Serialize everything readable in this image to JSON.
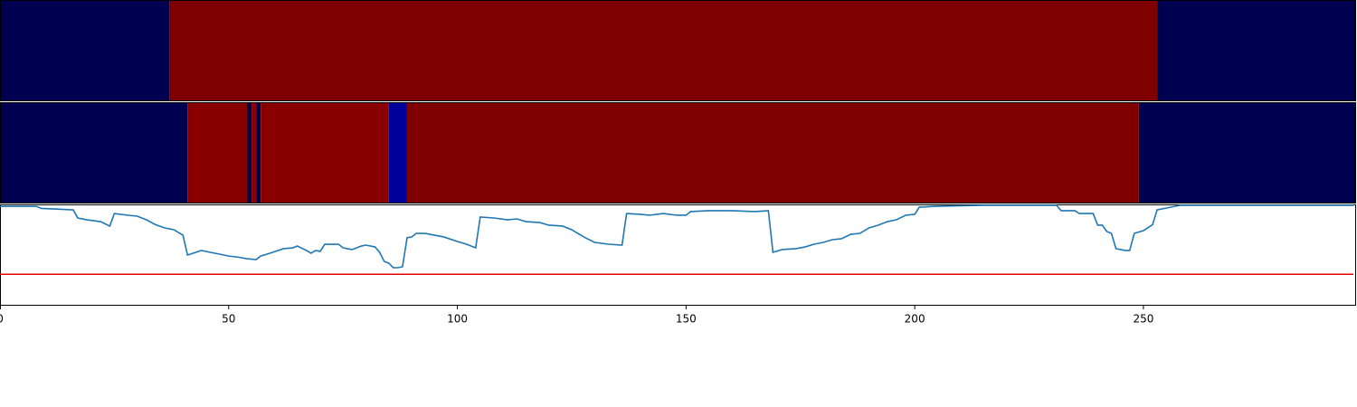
{
  "chart_data": {
    "type": "line",
    "xlim": [
      0,
      296.5
    ],
    "xticks": [
      0,
      50,
      100,
      150,
      200,
      250
    ],
    "heatmaps": [
      {
        "segments": [
          {
            "x0": 0,
            "x1": 37,
            "color": "#000050"
          },
          {
            "x0": 37,
            "x1": 253,
            "color": "#7f0000"
          },
          {
            "x0": 253,
            "x1": 296.5,
            "color": "#000050"
          }
        ]
      },
      {
        "segments": [
          {
            "x0": 0,
            "x1": 41,
            "color": "#000050"
          },
          {
            "x0": 41,
            "x1": 54,
            "color": "#8a0000"
          },
          {
            "x0": 54,
            "x1": 55,
            "color": "#000050"
          },
          {
            "x0": 55,
            "x1": 56,
            "color": "#8a0000"
          },
          {
            "x0": 56,
            "x1": 57,
            "color": "#000050"
          },
          {
            "x0": 57,
            "x1": 85,
            "color": "#8a0000"
          },
          {
            "x0": 85,
            "x1": 89,
            "color": "#00009a"
          },
          {
            "x0": 89,
            "x1": 249,
            "color": "#7f0000"
          },
          {
            "x0": 249,
            "x1": 296.5,
            "color": "#000050"
          }
        ]
      }
    ],
    "ylim": [
      0,
      1
    ],
    "threshold": 0.31,
    "threshold_color": "#e00000",
    "series": [
      {
        "color": "#1f77b4",
        "x": [
          0,
          8,
          9,
          12,
          16,
          17,
          19,
          22,
          24,
          25,
          28,
          30,
          32,
          34,
          36,
          38,
          40,
          41,
          44,
          46,
          48,
          50,
          52,
          54,
          56,
          57,
          59,
          62,
          64,
          65,
          67,
          68,
          69,
          70,
          71,
          74,
          75,
          77,
          79,
          80,
          82,
          83,
          84,
          85,
          86,
          87,
          88,
          89,
          90,
          91,
          93,
          95,
          97,
          100,
          102,
          104,
          105,
          108,
          111,
          113,
          115,
          118,
          120,
          123,
          125,
          126,
          128,
          130,
          133,
          136,
          137,
          140,
          142,
          145,
          148,
          150,
          151,
          155,
          160,
          165,
          168,
          169,
          171,
          174,
          176,
          178,
          180,
          182,
          184,
          186,
          188,
          190,
          192,
          194,
          196,
          198,
          200,
          201,
          205,
          215,
          231,
          232,
          235,
          236,
          239,
          240,
          241,
          242,
          243,
          244,
          246,
          247,
          248,
          250,
          252,
          253,
          256,
          258,
          270,
          296
        ],
        "values": [
          0.98,
          0.98,
          0.96,
          0.955,
          0.946,
          0.866,
          0.848,
          0.83,
          0.786,
          0.91,
          0.893,
          0.884,
          0.848,
          0.8,
          0.768,
          0.75,
          0.696,
          0.5,
          0.545,
          0.527,
          0.509,
          0.49,
          0.48,
          0.464,
          0.455,
          0.49,
          0.518,
          0.563,
          0.571,
          0.589,
          0.545,
          0.518,
          0.545,
          0.536,
          0.607,
          0.607,
          0.571,
          0.554,
          0.589,
          0.598,
          0.58,
          0.527,
          0.438,
          0.42,
          0.375,
          0.375,
          0.384,
          0.67,
          0.679,
          0.714,
          0.714,
          0.696,
          0.679,
          0.634,
          0.607,
          0.571,
          0.875,
          0.866,
          0.848,
          0.857,
          0.83,
          0.821,
          0.795,
          0.786,
          0.75,
          0.723,
          0.67,
          0.625,
          0.607,
          0.598,
          0.91,
          0.902,
          0.893,
          0.91,
          0.893,
          0.893,
          0.929,
          0.938,
          0.938,
          0.929,
          0.938,
          0.527,
          0.554,
          0.563,
          0.58,
          0.607,
          0.625,
          0.652,
          0.661,
          0.705,
          0.714,
          0.768,
          0.795,
          0.83,
          0.848,
          0.893,
          0.902,
          0.973,
          0.982,
          0.991,
          0.991,
          0.938,
          0.938,
          0.91,
          0.91,
          0.795,
          0.795,
          0.732,
          0.714,
          0.563,
          0.545,
          0.545,
          0.714,
          0.741,
          0.8,
          0.946,
          0.973,
          0.991,
          0.991,
          0.991
        ]
      }
    ]
  }
}
